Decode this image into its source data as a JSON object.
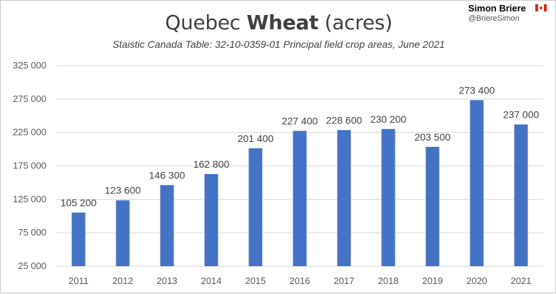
{
  "header": {
    "title_regular_1": "Quebec ",
    "title_bold": "Wheat",
    "title_regular_2": " (acres)",
    "subtitle": "Staistic Canada Table: 32-10-0359-01 Principal field crop areas, June 2021"
  },
  "author": {
    "name": "Simon Briere",
    "handle": "@BriereSimon",
    "flag_icon": "canada-flag-icon"
  },
  "chart_data": {
    "type": "bar",
    "title": "Quebec Wheat (acres)",
    "subtitle": "Staistic Canada Table: 32-10-0359-01 Principal field crop areas, June 2021",
    "categories": [
      "2011",
      "2012",
      "2013",
      "2014",
      "2015",
      "2016",
      "2017",
      "2018",
      "2019",
      "2020",
      "2021"
    ],
    "values": [
      105200,
      123600,
      146300,
      162800,
      201400,
      227400,
      228600,
      230200,
      203500,
      273400,
      237000
    ],
    "value_labels": [
      "105 200",
      "123 600",
      "146 300",
      "162 800",
      "201 400",
      "227 400",
      "228 600",
      "230 200",
      "203 500",
      "273 400",
      "237 000"
    ],
    "y_ticks": [
      25000,
      75000,
      125000,
      175000,
      225000,
      275000,
      325000
    ],
    "y_tick_labels": [
      "25 000",
      "75 000",
      "125 000",
      "175 000",
      "225 000",
      "275 000",
      "325 000"
    ],
    "ylim": [
      25000,
      325000
    ],
    "xlabel": "",
    "ylabel": "",
    "grid": true,
    "legend": false,
    "colors": {
      "bar": "#4472c4",
      "grid": "#d9d9d9",
      "text": "#404040",
      "flag_red": "#d52b1e"
    }
  }
}
